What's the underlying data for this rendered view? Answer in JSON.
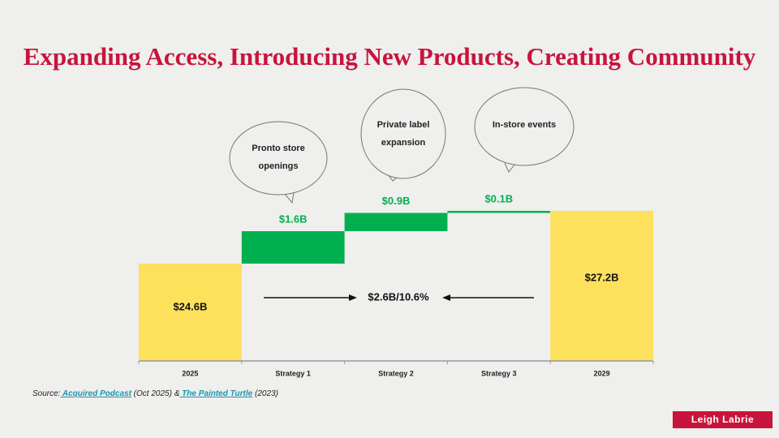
{
  "title": "Expanding Access, Introducing New Products, Creating Community",
  "chart_data": {
    "type": "waterfall",
    "categories": [
      "2025",
      "Strategy 1",
      "Strategy 2",
      "Strategy 3",
      "2029"
    ],
    "values": [
      24.6,
      1.6,
      0.9,
      0.1,
      27.2
    ],
    "value_labels": [
      "$24.6B",
      "$1.6B",
      "$0.9B",
      "$0.1B",
      "$27.2B"
    ],
    "colors": [
      "#fde05c",
      "#00b050",
      "#00b050",
      "#00b050",
      "#fde05c"
    ],
    "ylim": [
      19.8,
      28.5
    ],
    "annotations": [
      "Pronto store openings",
      "Private label expansion",
      "In-store events"
    ],
    "change_label": "$2.6B/10.6%"
  },
  "source": {
    "prefix": "Source:",
    "link1": " Acquired Podcast",
    "mid": " (Oct 2025) &",
    "link2": " The Painted Turtle",
    "suffix": " (2023)"
  },
  "footer": "Leigh Labrie"
}
